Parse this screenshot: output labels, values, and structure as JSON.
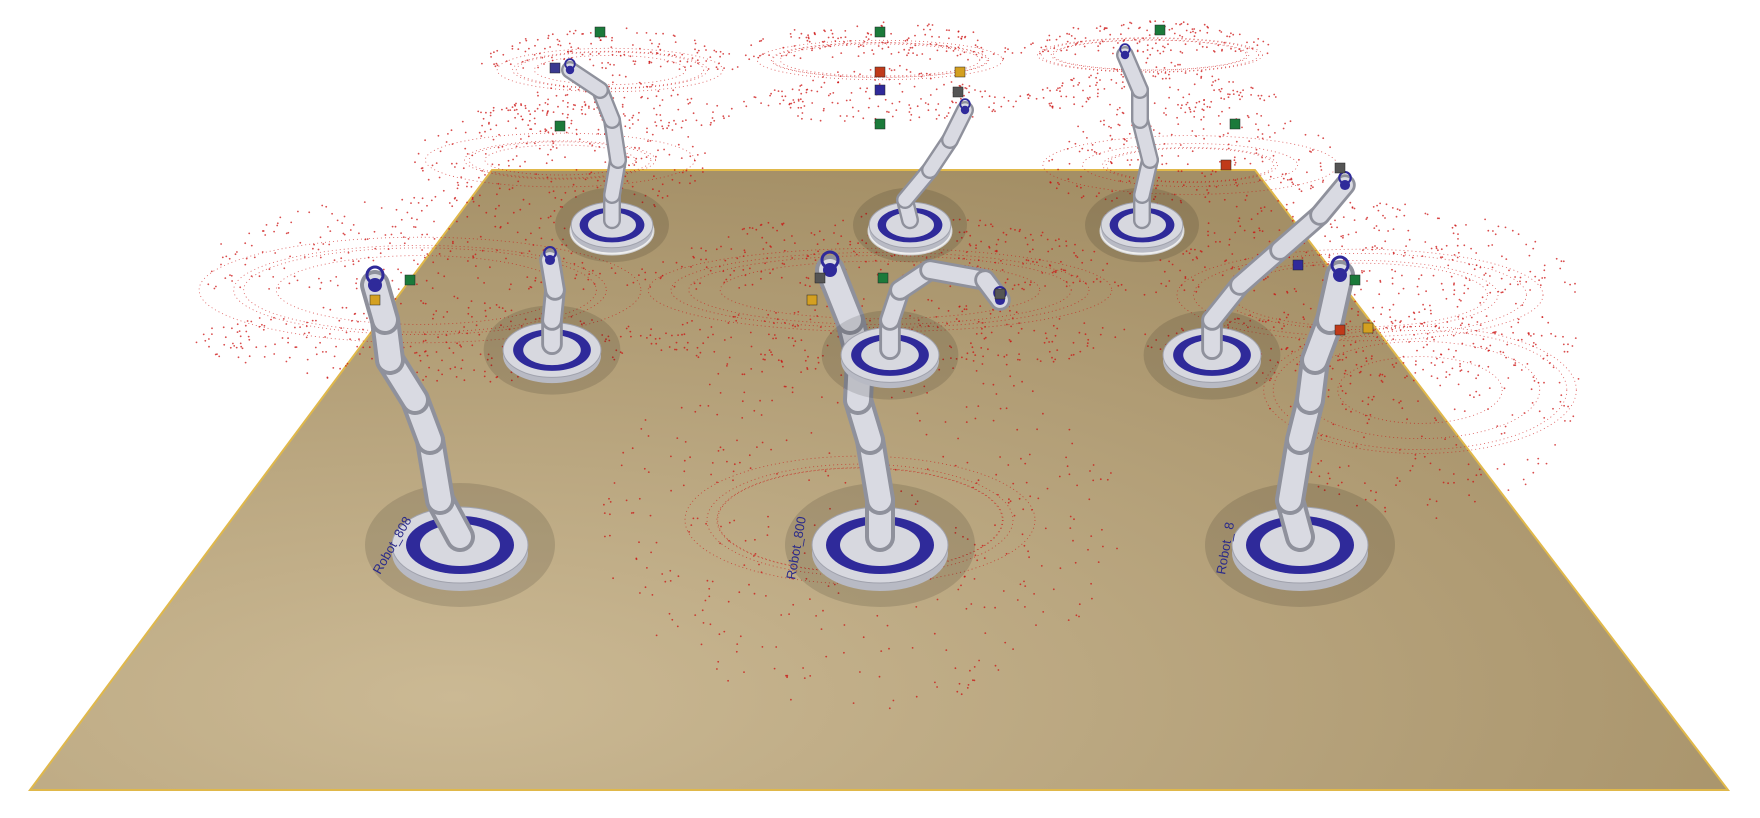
{
  "scene": {
    "floor_color": "#b9a57f",
    "floor_edge_color": "#e0b84a",
    "trajectory_color": "#cc1111",
    "robot_body_color": "#c9cbd4",
    "robot_accent_color": "#2f2a9a",
    "robots": [
      {
        "label": "Robot_808"
      },
      {
        "label": "Robot_800"
      },
      {
        "label": "Robot_  8"
      },
      {
        "label": ""
      },
      {
        "label": ""
      },
      {
        "label": ""
      },
      {
        "label": ""
      },
      {
        "label": ""
      },
      {
        "label": ""
      }
    ]
  }
}
